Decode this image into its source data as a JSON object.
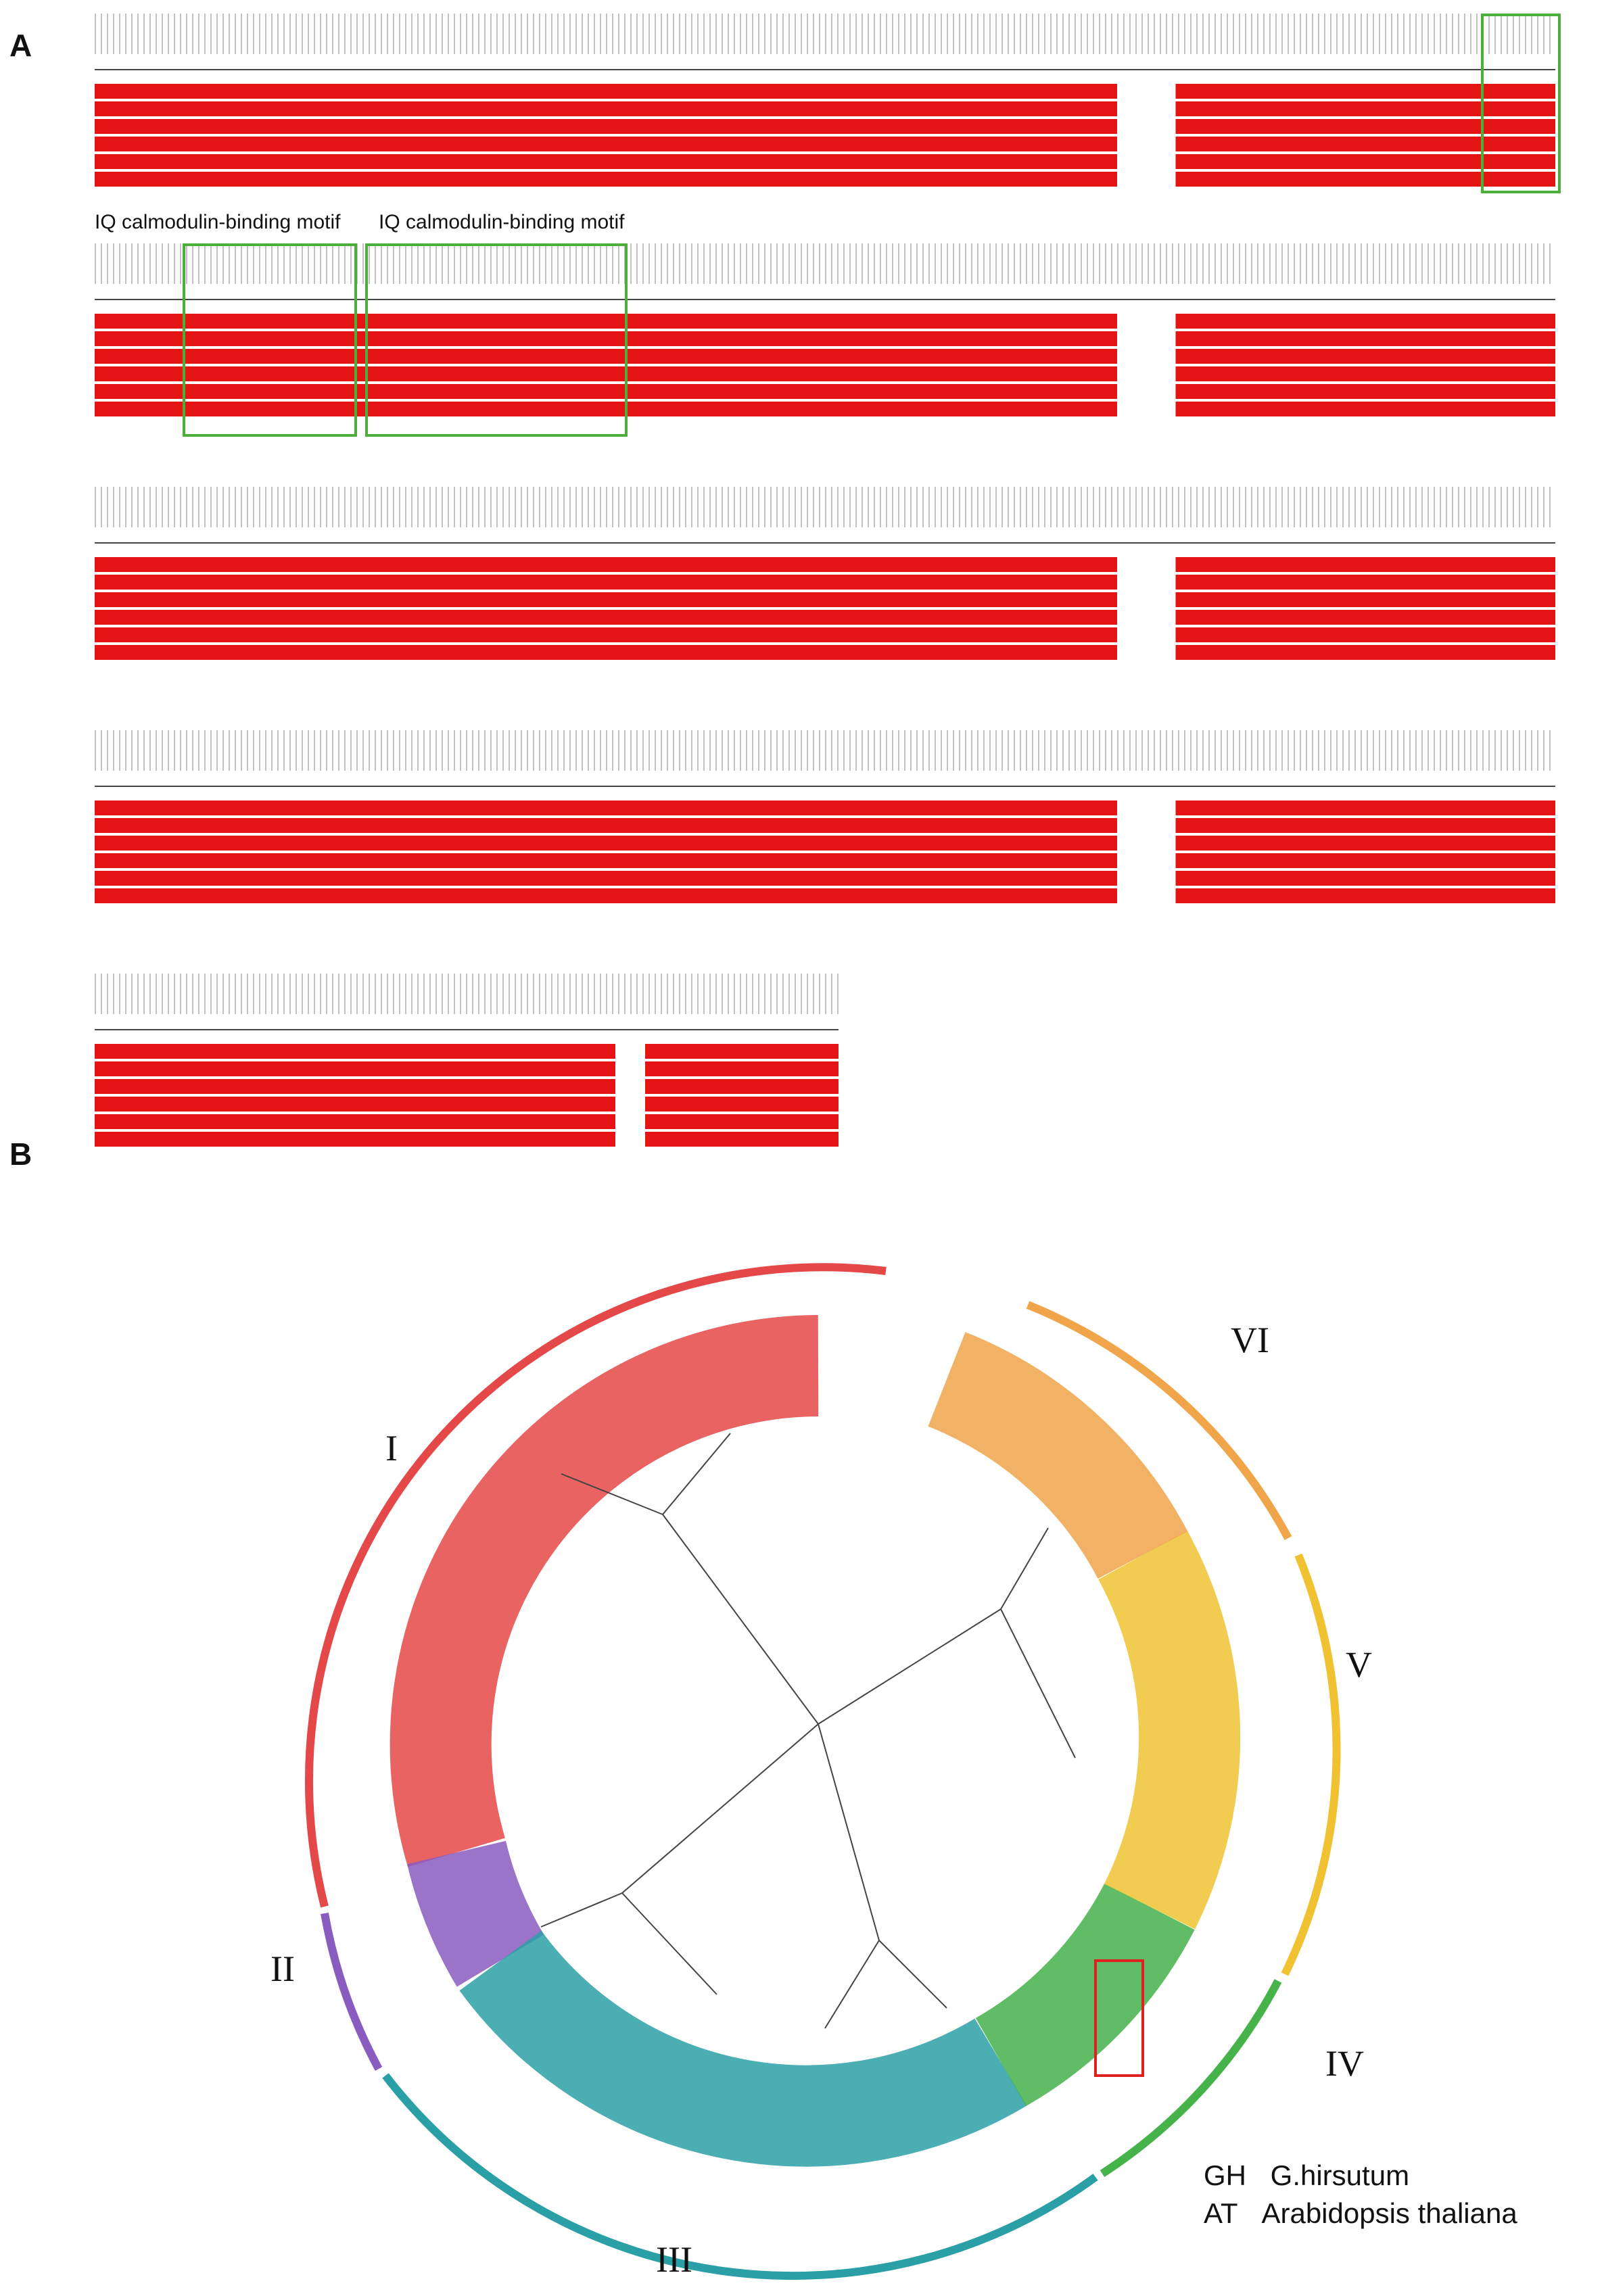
{
  "panels": {
    "a": "A",
    "b": "B"
  },
  "alignment": {
    "motif_labels": [
      "IQ calmodulin-binding motif",
      "IQ calmodulin-binding motif"
    ]
  },
  "tree": {
    "clades": [
      {
        "label": "I",
        "color": "#e54848"
      },
      {
        "label": "II",
        "color": "#8a5cc0"
      },
      {
        "label": "III",
        "color": "#2aa0a6"
      },
      {
        "label": "IV",
        "color": "#45b24a"
      },
      {
        "label": "V",
        "color": "#f0c232"
      },
      {
        "label": "VI",
        "color": "#f0a54a"
      }
    ]
  },
  "legend": [
    {
      "abbr": "GH",
      "name": "G.hirsutum"
    },
    {
      "abbr": "AT",
      "name": "Arabidopsis thaliana"
    }
  ]
}
